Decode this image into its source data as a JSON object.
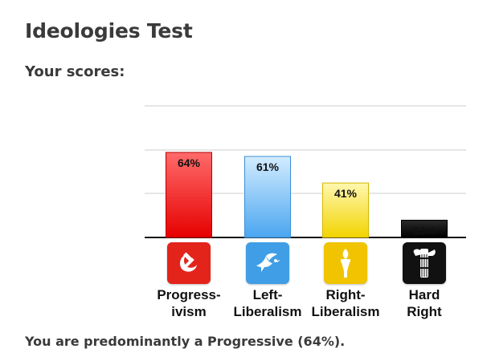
{
  "page": {
    "title": "Ideologies Test",
    "subtitle": "Your scores:",
    "summary_prefix": "You are predominantly a Progressive (64%)."
  },
  "chart_data": {
    "type": "bar",
    "categories": [
      "Progress-\nivism",
      "Left-\nLiberalism",
      "Right-\nLiberalism",
      "Hard\nRight"
    ],
    "values": [
      64,
      61,
      41,
      13
    ],
    "value_labels": [
      "64%",
      "61%",
      "41%",
      "13%"
    ],
    "ylim": [
      0,
      100
    ],
    "grid": true,
    "colors": [
      {
        "top": "#ff6b6b",
        "bottom": "#e60000",
        "stroke": "#b30000"
      },
      {
        "top": "#d3ecff",
        "bottom": "#4aa6f0",
        "stroke": "#3b8fd6"
      },
      {
        "top": "#fff7b0",
        "bottom": "#f2d400",
        "stroke": "#d4b800"
      },
      {
        "top": "#2a2a2a",
        "bottom": "#000000",
        "stroke": "#000000"
      }
    ],
    "icons": [
      {
        "name": "hammer-sickle-icon",
        "bg": "#e3241b",
        "fg": "#ffffff"
      },
      {
        "name": "dove-icon",
        "bg": "#3f9ee6",
        "fg": "#ffffff"
      },
      {
        "name": "torch-icon",
        "bg": "#f0c400",
        "fg": "#ffffff"
      },
      {
        "name": "fasces-icon",
        "bg": "#111111",
        "fg": "#ffffff"
      }
    ]
  }
}
